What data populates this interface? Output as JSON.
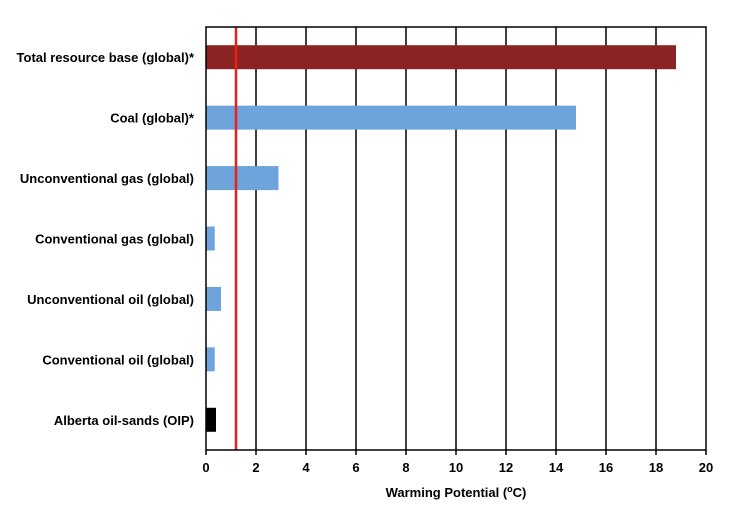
{
  "chart_data": {
    "type": "bar",
    "orientation": "horizontal",
    "categories": [
      "Total resource base (global)*",
      "Coal (global)*",
      "Unconventional gas (global)",
      "Conventional gas (global)",
      "Unconventional oil (global)",
      "Conventional oil (global)",
      "Alberta oil-sands (OIP)"
    ],
    "values": [
      18.8,
      14.8,
      2.9,
      0.35,
      0.6,
      0.35,
      0.4
    ],
    "bar_colors": [
      "#8b2323",
      "#6fa3dc",
      "#6fa3dc",
      "#6fa3dc",
      "#6fa3dc",
      "#6fa3dc",
      "#000000"
    ],
    "xlim": [
      0,
      20
    ],
    "x_ticks": [
      0,
      2,
      4,
      6,
      8,
      10,
      12,
      14,
      16,
      18,
      20
    ],
    "x_tick_labels": [
      "0",
      "2",
      "4",
      "6",
      "8",
      "10",
      "12",
      "14",
      "16",
      "18",
      "20"
    ],
    "xlabel_parts": {
      "pre": "Warming Potential (",
      "sup": "o",
      "post": "C)"
    },
    "reference_line": {
      "value": 1.2,
      "color": "#e8201a"
    },
    "grid": "vertical",
    "legend": "none"
  }
}
